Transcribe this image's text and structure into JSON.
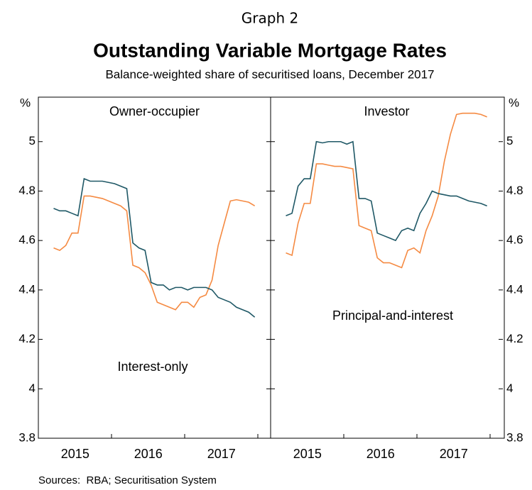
{
  "graph_label": "Graph 2",
  "title": "Outstanding Variable Mortgage Rates",
  "subtitle": "Balance-weighted share of securitised loans, December 2017",
  "sources": "Sources:  RBA; Securitisation System",
  "chart_data": [
    {
      "type": "line",
      "title": "Owner-occupier",
      "y_unit": "%",
      "categories": [
        null,
        null,
        null,
        null,
        "2015",
        null,
        null,
        null,
        null,
        null,
        null,
        null,
        null,
        null,
        null,
        null,
        "2016",
        null,
        null,
        null,
        null,
        null,
        null,
        null,
        null,
        null,
        null,
        null,
        "2017",
        null,
        null,
        null,
        null,
        null
      ],
      "ylim": [
        3.8,
        5.18
      ],
      "yticks": [
        3.8,
        4.0,
        4.2,
        4.4,
        4.6,
        4.8,
        5.0
      ],
      "series": [
        {
          "name": "Interest-only",
          "color": "#f58a42",
          "values": [
            4.57,
            4.56,
            4.58,
            4.63,
            4.63,
            4.78,
            4.78,
            4.775,
            4.77,
            4.76,
            4.75,
            4.74,
            4.72,
            4.5,
            4.49,
            4.47,
            4.42,
            4.35,
            4.34,
            4.33,
            4.32,
            4.35,
            4.35,
            4.33,
            4.37,
            4.38,
            4.44,
            4.58,
            4.67,
            4.76,
            4.765,
            4.76,
            4.755,
            4.74
          ]
        },
        {
          "color": "#1f5866",
          "values": [
            4.73,
            4.72,
            4.72,
            4.71,
            4.7,
            4.85,
            4.84,
            4.84,
            4.84,
            4.835,
            4.83,
            4.82,
            4.81,
            4.59,
            4.57,
            4.56,
            4.43,
            4.42,
            4.42,
            4.4,
            4.41,
            4.41,
            4.4,
            4.41,
            4.41,
            4.41,
            4.4,
            4.37,
            4.36,
            4.35,
            4.33,
            4.32,
            4.31,
            4.29
          ]
        }
      ]
    },
    {
      "type": "line",
      "title": "Investor",
      "y_unit": "%",
      "categories": [
        null,
        null,
        null,
        null,
        "2015",
        null,
        null,
        null,
        null,
        null,
        null,
        null,
        null,
        null,
        null,
        null,
        "2016",
        null,
        null,
        null,
        null,
        null,
        null,
        null,
        null,
        null,
        null,
        null,
        "2017",
        null,
        null,
        null,
        null,
        null
      ],
      "ylim": [
        3.8,
        5.18
      ],
      "yticks": [
        3.8,
        4.0,
        4.2,
        4.4,
        4.6,
        4.8,
        5.0
      ],
      "series": [
        {
          "color": "#f58a42",
          "values": [
            4.55,
            4.54,
            4.67,
            4.75,
            4.75,
            4.91,
            4.91,
            4.905,
            4.9,
            4.9,
            4.895,
            4.89,
            4.66,
            4.65,
            4.64,
            4.53,
            4.51,
            4.51,
            4.5,
            4.49,
            4.56,
            4.57,
            4.55,
            4.64,
            4.7,
            4.78,
            4.92,
            5.03,
            5.11,
            5.115,
            5.115,
            5.115,
            5.11,
            5.1
          ]
        },
        {
          "name": "Principal-and-interest",
          "color": "#1f5866",
          "values": [
            4.7,
            4.71,
            4.82,
            4.85,
            4.85,
            5.0,
            4.995,
            5.0,
            5.0,
            5.0,
            4.99,
            5.0,
            4.77,
            4.77,
            4.76,
            4.63,
            4.62,
            4.61,
            4.6,
            4.64,
            4.65,
            4.64,
            4.71,
            4.75,
            4.8,
            4.79,
            4.785,
            4.78,
            4.78,
            4.77,
            4.76,
            4.755,
            4.75,
            4.74
          ]
        }
      ]
    }
  ]
}
